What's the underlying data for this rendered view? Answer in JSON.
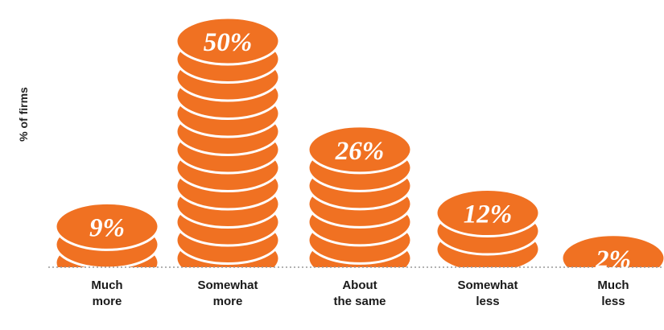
{
  "chart_data": {
    "type": "bar",
    "ylabel": "% of firms",
    "categories": [
      [
        "Much",
        "more"
      ],
      [
        "Somewhat",
        "more"
      ],
      [
        "About",
        "the same"
      ],
      [
        "Somewhat",
        "less"
      ],
      [
        "Much",
        "less"
      ]
    ],
    "values": [
      9,
      50,
      26,
      12,
      2
    ],
    "value_labels": [
      "9%",
      "50%",
      "26%",
      "12%",
      "2%"
    ],
    "ylim": [
      0,
      50
    ],
    "grid": false,
    "legend": "none",
    "colors": {
      "coin": "#f07122",
      "coin_edge": "#ffffff",
      "label_on_coin": "#ffffff",
      "label_off_coin": "#f07122",
      "baseline": "#999999"
    }
  }
}
